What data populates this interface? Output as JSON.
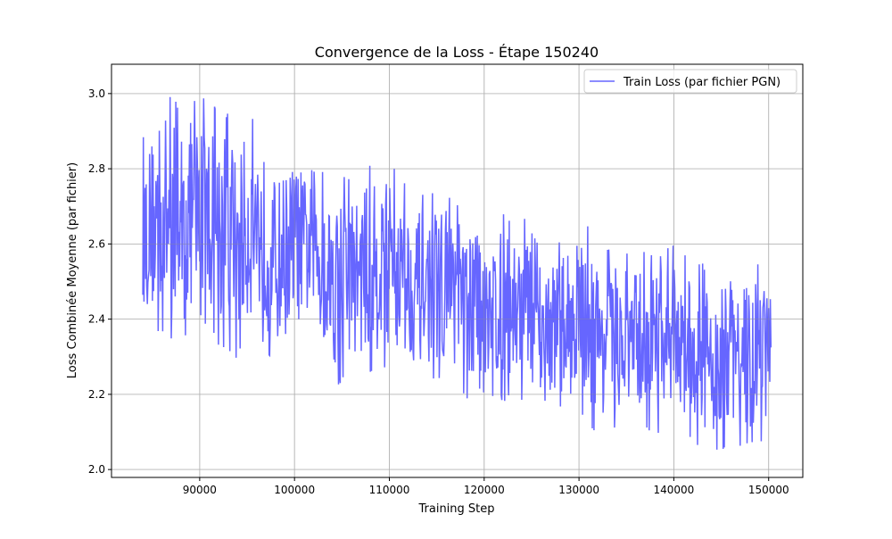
{
  "chart_data": {
    "type": "line",
    "title": "Convergence de la Loss - Étape 150240",
    "xlabel": "Training Step",
    "ylabel": "Loss Combinée Moyenne (par fichier)",
    "xlim": [
      80700,
      153600
    ],
    "ylim": [
      1.979,
      3.078
    ],
    "xticks": [
      90000,
      100000,
      110000,
      120000,
      130000,
      140000,
      150000
    ],
    "yticks": [
      2.0,
      2.2,
      2.4,
      2.6,
      2.8,
      3.0
    ],
    "ytick_labels": [
      "2.0",
      "2.2",
      "2.4",
      "2.6",
      "2.8",
      "3.0"
    ],
    "grid": true,
    "legend_position": "top-right",
    "series": [
      {
        "name": "Train Loss (par fichier PGN)",
        "color": "#0000ff",
        "alpha": 0.6,
        "envelope_step": [
          84000,
          86000,
          88000,
          90000,
          92000,
          94000,
          96000,
          98000,
          100000,
          102000,
          104000,
          106000,
          108000,
          110000,
          112000,
          114000,
          116000,
          118000,
          120000,
          122000,
          124000,
          126000,
          128000,
          130000,
          132000,
          134000,
          136000,
          138000,
          140000,
          142000,
          144000,
          146000,
          148000,
          150000,
          150240
        ],
        "upper": [
          2.88,
          3.02,
          2.98,
          3.01,
          2.96,
          2.95,
          2.94,
          2.83,
          2.88,
          2.8,
          2.8,
          2.78,
          2.82,
          2.83,
          2.75,
          2.73,
          2.75,
          2.69,
          2.7,
          2.68,
          2.68,
          2.6,
          2.61,
          2.69,
          2.6,
          2.59,
          2.58,
          2.58,
          2.6,
          2.55,
          2.55,
          2.56,
          2.56,
          2.53,
          2.44
        ],
        "lower": [
          2.37,
          2.35,
          2.31,
          2.4,
          2.33,
          2.29,
          2.37,
          2.26,
          2.33,
          2.36,
          2.21,
          2.25,
          2.25,
          2.27,
          2.24,
          2.22,
          2.25,
          2.18,
          2.2,
          2.18,
          2.18,
          2.17,
          2.15,
          2.14,
          2.09,
          2.1,
          2.11,
          2.09,
          2.1,
          2.07,
          2.04,
          2.06,
          2.05,
          2.08,
          2.27
        ]
      }
    ]
  }
}
